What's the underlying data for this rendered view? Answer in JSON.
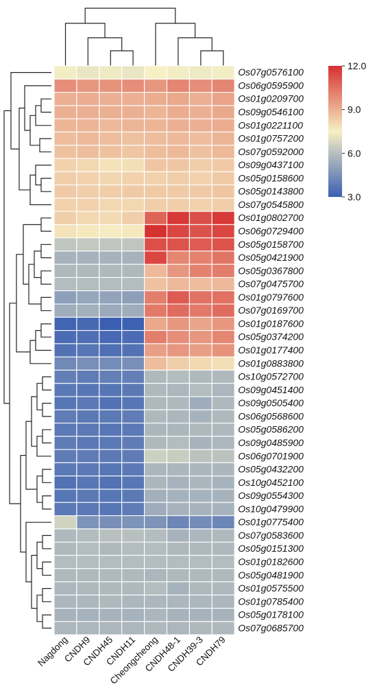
{
  "chart_data": {
    "type": "heatmap",
    "title": "",
    "xlabel": "",
    "ylabel": "",
    "columns": [
      "Nagdong",
      "CNDH9",
      "CNDH45",
      "CNDH11",
      "Cheongcheong",
      "CNDH48-1",
      "CNDH39-3",
      "CNDH79"
    ],
    "rows": [
      "Os07g0576100",
      "Os06g0595900",
      "Os01g0209700",
      "Os09g0546100",
      "Os01g0221100",
      "Os01g0757200",
      "Os07g0592000",
      "Os09g0437100",
      "Os05g0158600",
      "Os05g0143800",
      "Os07g0545800",
      "Os01g0802700",
      "Os06g0729400",
      "Os05g0158700",
      "Os05g0421900",
      "Os05g0367800",
      "Os07g0475700",
      "Os01g0797600",
      "Os07g0169700",
      "Os01g0187600",
      "Os05g0374200",
      "Os01g0177400",
      "Os01g0883800",
      "Os10g0572700",
      "Os09g0451400",
      "Os09g0505400",
      "Os06g0568600",
      "Os05g0586200",
      "Os09g0485900",
      "Os06g0701900",
      "Os05g0432200",
      "Os10g0452100",
      "Os09g0554300",
      "Os10g0479900",
      "Os01g0775400",
      "Os07g0583600",
      "Os05g0151300",
      "Os01g0182600",
      "Os05g0481900",
      "Os01g0575500",
      "Os01g0785400",
      "Os05g0178100",
      "Os07g0685700"
    ],
    "values": [
      [
        7.4,
        7.2,
        7.3,
        7.2,
        7.5,
        7.4,
        7.3,
        7.4
      ],
      [
        9.8,
        9.6,
        9.7,
        9.8,
        9.6,
        10.0,
        9.8,
        10.0
      ],
      [
        9.0,
        9.1,
        9.0,
        9.0,
        9.1,
        9.2,
        9.0,
        9.3
      ],
      [
        9.0,
        9.0,
        9.0,
        9.0,
        8.9,
        9.1,
        9.0,
        9.2
      ],
      [
        8.9,
        8.9,
        8.8,
        8.9,
        8.9,
        9.0,
        9.0,
        9.1
      ],
      [
        8.7,
        8.8,
        8.7,
        8.6,
        8.7,
        8.8,
        8.7,
        8.9
      ],
      [
        8.6,
        8.7,
        8.6,
        8.5,
        8.7,
        8.8,
        8.6,
        8.8
      ],
      [
        8.2,
        8.1,
        7.8,
        7.9,
        8.5,
        8.5,
        8.3,
        8.4
      ],
      [
        8.3,
        8.2,
        8.1,
        8.2,
        8.2,
        8.3,
        8.2,
        8.4
      ],
      [
        8.4,
        8.3,
        8.3,
        8.4,
        8.4,
        8.4,
        8.4,
        8.5
      ],
      [
        8.2,
        8.2,
        8.1,
        8.1,
        8.3,
        8.3,
        8.2,
        8.3
      ],
      [
        8.3,
        8.1,
        8.0,
        8.3,
        10.8,
        11.8,
        11.3,
        11.8
      ],
      [
        7.8,
        7.7,
        7.6,
        7.7,
        12.0,
        11.5,
        11.2,
        11.5
      ],
      [
        6.2,
        6.3,
        6.2,
        6.2,
        11.3,
        11.2,
        11.0,
        11.2
      ],
      [
        5.6,
        5.6,
        5.6,
        5.6,
        11.5,
        10.0,
        10.1,
        10.4
      ],
      [
        5.8,
        5.8,
        5.8,
        5.8,
        8.8,
        9.6,
        10.1,
        10.2
      ],
      [
        5.9,
        5.9,
        5.9,
        5.9,
        8.6,
        8.8,
        8.7,
        8.8
      ],
      [
        5.0,
        5.2,
        5.1,
        5.0,
        10.2,
        11.0,
        10.5,
        10.5
      ],
      [
        5.4,
        5.5,
        5.3,
        5.4,
        10.3,
        10.6,
        10.3,
        10.6
      ],
      [
        3.2,
        3.3,
        3.0,
        3.1,
        9.2,
        9.6,
        9.3,
        9.6
      ],
      [
        3.4,
        3.5,
        3.3,
        3.4,
        10.2,
        9.8,
        9.6,
        10.0
      ],
      [
        3.6,
        3.7,
        3.5,
        3.6,
        9.4,
        9.6,
        9.4,
        9.7
      ],
      [
        4.3,
        4.5,
        4.4,
        4.5,
        8.7,
        8.3,
        8.1,
        7.9
      ],
      [
        4.0,
        3.9,
        4.0,
        4.0,
        5.8,
        5.9,
        5.8,
        5.8
      ],
      [
        3.8,
        3.7,
        3.7,
        3.8,
        5.8,
        5.7,
        5.9,
        5.7
      ],
      [
        3.7,
        3.8,
        3.6,
        3.7,
        5.8,
        5.8,
        5.4,
        5.8
      ],
      [
        3.9,
        3.8,
        3.8,
        3.9,
        5.8,
        5.7,
        5.6,
        5.8
      ],
      [
        3.8,
        3.8,
        3.7,
        3.8,
        5.7,
        5.7,
        5.8,
        5.8
      ],
      [
        3.9,
        3.8,
        3.8,
        3.9,
        5.8,
        5.9,
        5.6,
        5.7
      ],
      [
        3.9,
        3.9,
        3.8,
        3.9,
        6.5,
        6.4,
        6.1,
        6.1
      ],
      [
        3.8,
        3.8,
        3.7,
        3.8,
        5.7,
        5.7,
        5.7,
        5.7
      ],
      [
        3.6,
        3.7,
        3.6,
        3.7,
        5.7,
        5.6,
        5.7,
        5.6
      ],
      [
        3.7,
        3.8,
        3.7,
        3.8,
        5.5,
        5.6,
        5.6,
        5.6
      ],
      [
        3.8,
        3.8,
        3.7,
        3.9,
        5.4,
        5.6,
        5.6,
        5.6
      ],
      [
        6.6,
        4.6,
        4.5,
        4.6,
        4.6,
        4.2,
        4.4,
        4.2
      ],
      [
        5.8,
        5.9,
        6.0,
        6.0,
        5.9,
        5.6,
        5.7,
        5.8
      ],
      [
        5.8,
        5.9,
        5.8,
        5.9,
        5.9,
        5.8,
        5.8,
        5.8
      ],
      [
        5.9,
        5.9,
        5.9,
        5.9,
        5.9,
        5.9,
        5.9,
        5.9
      ],
      [
        5.8,
        5.8,
        5.8,
        5.8,
        5.7,
        5.8,
        5.8,
        5.8
      ],
      [
        5.7,
        5.8,
        5.8,
        5.8,
        5.9,
        5.6,
        5.8,
        5.8
      ],
      [
        5.7,
        5.7,
        5.8,
        5.7,
        5.7,
        5.7,
        5.7,
        5.7
      ],
      [
        5.6,
        5.6,
        5.6,
        5.6,
        5.7,
        5.6,
        5.6,
        5.6
      ],
      [
        5.7,
        5.7,
        5.7,
        5.7,
        5.8,
        5.7,
        5.8,
        5.8
      ]
    ],
    "colorbar": {
      "min": 3.0,
      "max": 12.0,
      "ticks": [
        12.0,
        9.0,
        6.0,
        3.0
      ],
      "tick_labels": [
        "12.0",
        "9.0",
        "6.0",
        "3.0"
      ],
      "colors": [
        "#3a5fb2",
        "#f6f0c4",
        "#d63131"
      ]
    },
    "grid": true,
    "legend_placement": "top-right",
    "column_dendrogram": true,
    "row_dendrogram": true
  }
}
